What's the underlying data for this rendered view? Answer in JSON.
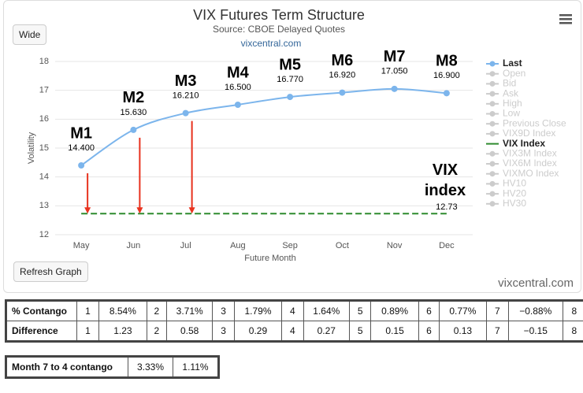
{
  "chart_data": {
    "type": "line",
    "title": "VIX Futures Term Structure",
    "subtitle": "Source: CBOE Delayed Quotes",
    "link": "vixcentral.com",
    "x_label": "Future Month",
    "y_label": "Volatility",
    "categories": [
      "May",
      "Jun",
      "Jul",
      "Aug",
      "Sep",
      "Oct",
      "Nov",
      "Dec"
    ],
    "ylim": [
      12,
      18
    ],
    "yticks": [
      12,
      13,
      14,
      15,
      16,
      17,
      18
    ],
    "grid": true,
    "annotations": [
      "M1",
      "M2",
      "M3",
      "M4",
      "M5",
      "M6",
      "M7",
      "M8"
    ],
    "vix_annotation": "VIX index",
    "series": [
      {
        "name": "Last",
        "color": "#7cb5ec",
        "values": [
          14.4,
          15.63,
          16.21,
          16.5,
          16.77,
          16.92,
          17.05,
          16.9
        ],
        "value_labels": [
          "14.400",
          "15.630",
          "16.210",
          "16.500",
          "16.770",
          "16.920",
          "17.050",
          "16.900"
        ]
      },
      {
        "name": "Open",
        "visible": false,
        "values": [
          null,
          null,
          null,
          null,
          null,
          null,
          null,
          null
        ]
      },
      {
        "name": "Bid",
        "visible": false,
        "values": [
          null,
          null,
          null,
          null,
          null,
          null,
          null,
          null
        ]
      },
      {
        "name": "Ask",
        "visible": false,
        "values": [
          null,
          null,
          null,
          null,
          null,
          null,
          null,
          null
        ]
      },
      {
        "name": "High",
        "visible": false,
        "values": [
          null,
          null,
          null,
          null,
          null,
          null,
          null,
          null
        ]
      },
      {
        "name": "Low",
        "visible": false,
        "values": [
          null,
          null,
          null,
          null,
          null,
          null,
          null,
          null
        ]
      },
      {
        "name": "Previous Close",
        "visible": false,
        "values": [
          null,
          null,
          null,
          null,
          null,
          null,
          null,
          null
        ]
      },
      {
        "name": "VIX9D Index",
        "visible": false,
        "values": [
          null,
          null,
          null,
          null,
          null,
          null,
          null,
          null
        ]
      },
      {
        "name": "VIX Index",
        "color": "#2e8b2e",
        "dashed": true,
        "values": [
          12.73,
          12.73,
          12.73,
          12.73,
          12.73,
          12.73,
          12.73,
          12.73
        ],
        "value_labels": [
          null,
          null,
          null,
          null,
          null,
          null,
          null,
          "12.73"
        ]
      },
      {
        "name": "VIX3M Index",
        "visible": false,
        "values": [
          null,
          null,
          null,
          null,
          null,
          null,
          null,
          null
        ]
      },
      {
        "name": "VIX6M Index",
        "visible": false,
        "values": [
          null,
          null,
          null,
          null,
          null,
          null,
          null,
          null
        ]
      },
      {
        "name": "VIXMO Index",
        "visible": false,
        "values": [
          null,
          null,
          null,
          null,
          null,
          null,
          null,
          null
        ]
      },
      {
        "name": "HV10",
        "visible": false,
        "values": [
          null,
          null,
          null,
          null,
          null,
          null,
          null,
          null
        ]
      },
      {
        "name": "HV20",
        "visible": false,
        "values": [
          null,
          null,
          null,
          null,
          null,
          null,
          null,
          null
        ]
      },
      {
        "name": "HV30",
        "visible": false,
        "values": [
          null,
          null,
          null,
          null,
          null,
          null,
          null,
          null
        ]
      }
    ]
  },
  "buttons": {
    "wide": "Wide",
    "refresh": "Refresh Graph"
  },
  "credit": "vixcentral.com",
  "contango_table": {
    "rows": [
      [
        "% Contango",
        "1",
        "8.54%",
        "2",
        "3.71%",
        "3",
        "1.79%",
        "4",
        "1.64%",
        "5",
        "0.89%",
        "6",
        "0.77%",
        "7",
        "−0.88%",
        "8"
      ],
      [
        "Difference",
        "1",
        "1.23",
        "2",
        "0.58",
        "3",
        "0.29",
        "4",
        "0.27",
        "5",
        "0.15",
        "6",
        "0.13",
        "7",
        "−0.15",
        "8"
      ]
    ]
  },
  "month_table": {
    "rows": [
      [
        "Month 7 to 4 contango",
        "3.33%",
        "1.11%"
      ]
    ]
  }
}
